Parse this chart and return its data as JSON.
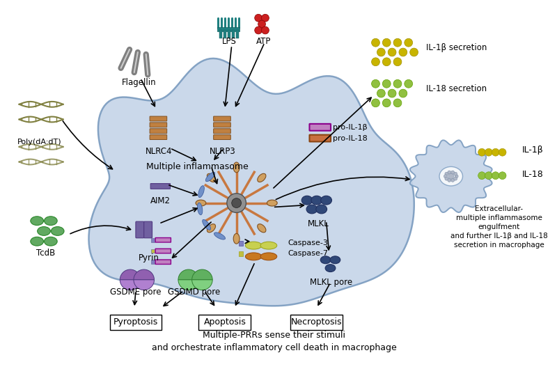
{
  "bg_color": "#ffffff",
  "cell_color": "#c5d4e8",
  "cell_edge_color": "#7a9bbf",
  "labels": {
    "flagellin": "Flagellin",
    "lps": "LPS",
    "atp": "ATP",
    "poly": "Poly(dA:dT)",
    "nlrc4": "NLRC4",
    "nlrp3": "NLRP3",
    "multi_inflam": "Multiple inflammasome",
    "aim2": "AIM2",
    "pyrin": "Pyrin",
    "mlkl": "MLKL",
    "mlkl_pore": "MLKL pore",
    "caspase3": "Caspase-3",
    "caspase7": "Caspase-7",
    "gsdme": "GSDME pore",
    "gsdmd": "GSDMD pore",
    "pyroptosis": "Pyroptosis",
    "apoptosis": "Apoptosis",
    "necroptosis": "Necroptosis",
    "pro_il1b": "pro-IL-1β",
    "pro_il18": "pro-IL-18",
    "il1b_sec": "IL-1β secretion",
    "il18_sec": "IL-18 secretion",
    "tcdb": "TcdB",
    "extracellular": "Extracellular-\nmultiple inflammasome\nengulfment\nand further IL-1β and IL-18\nsecretion in macrophage",
    "il1b": "IL-1β",
    "il18": "IL-18",
    "bottom1": "Multiple-PRRs sense their stimuli",
    "bottom2": "and orchestrate inflammatory cell death in macrophage"
  },
  "colors": {
    "pro_il1b_line": "#8b008b",
    "pro_il1b_fill": "#c080c0",
    "pro_il18_line": "#8b4513",
    "pro_il18_fill": "#c87040",
    "il1b_dots": "#c8b400",
    "il18_dots": "#90c040",
    "caspase3_fill": "#c8d050",
    "caspase3_edge": "#a0a820",
    "caspase7_fill": "#c87820",
    "caspase7_edge": "#a05010",
    "gsdme_fill": "#9060b0",
    "gsdme_fill2": "#b080d0",
    "gsdmd_fill": "#60b060",
    "gsdmd_fill2": "#80d080",
    "mlkl_fill": "#304878",
    "inflammasome_spoke": "#c87840",
    "dna_color": "#808040",
    "flagellin_color": "#808080",
    "lps_color": "#208080",
    "atp_color": "#cc2020",
    "tcdb_color": "#50a050",
    "pyrin_color": "#7060a0",
    "aim2_color": "#7060a0",
    "nlrc4_color": "#c08040",
    "receptor_edge": "#805020"
  }
}
